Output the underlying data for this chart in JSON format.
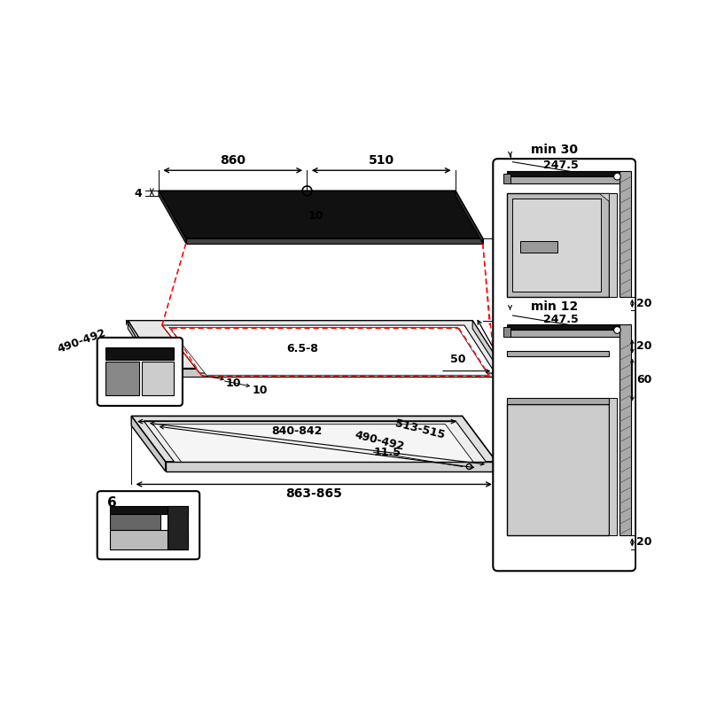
{
  "bg": "#ffffff",
  "lc": "#000000",
  "rc": "#ff0000",
  "dark_fill": "#111111",
  "light_gray": "#cccccc",
  "med_gray": "#999999",
  "dark_gray": "#555555"
}
